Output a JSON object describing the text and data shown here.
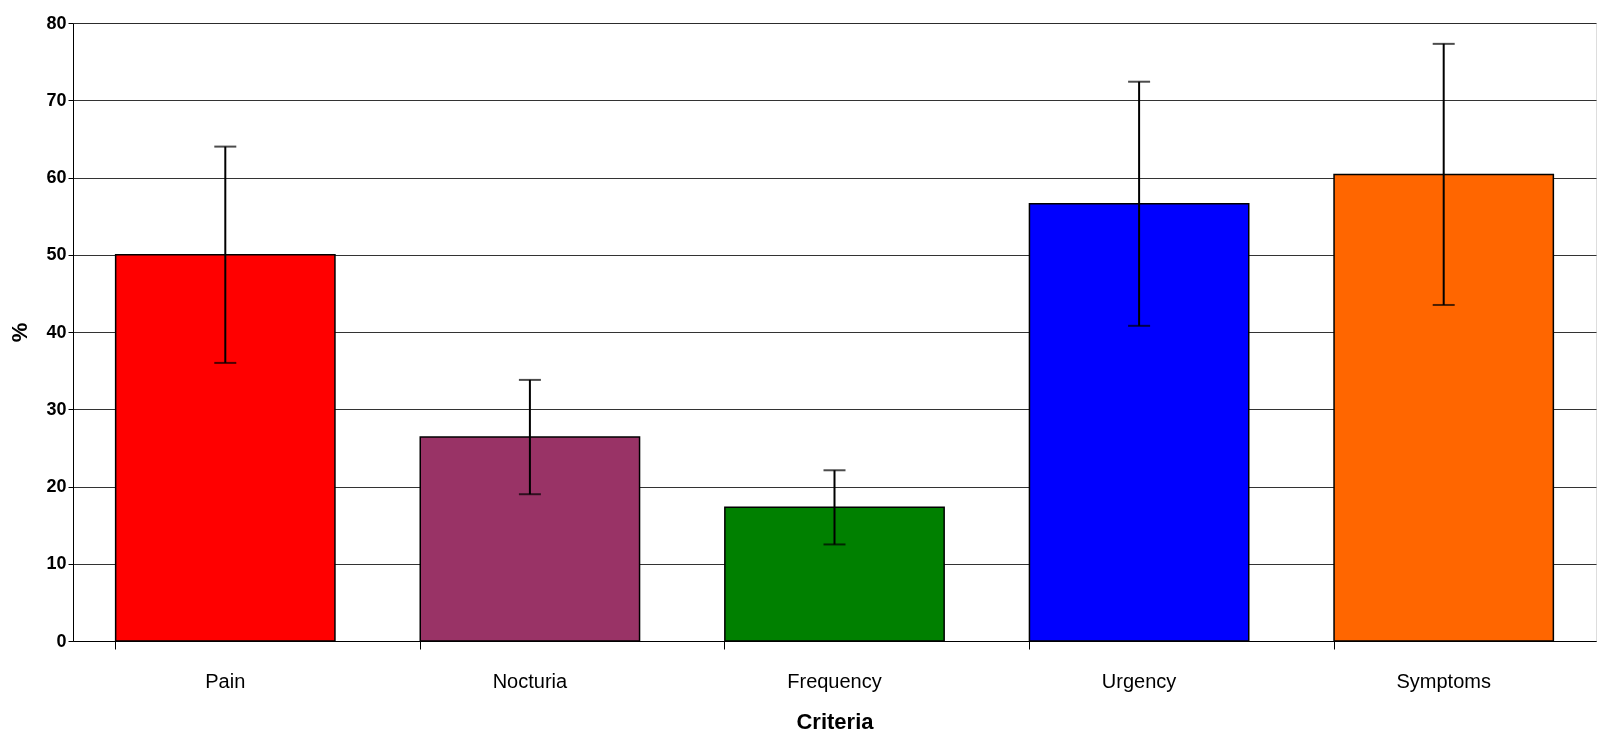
{
  "chart_data": {
    "type": "bar",
    "xlabel": "Criteria",
    "ylabel": "%",
    "categories": [
      "Pain",
      "Nocturia",
      "Frequency",
      "Urgency",
      "Symptoms"
    ],
    "values": [
      50,
      26.4,
      17.3,
      56.6,
      60.4
    ],
    "colors": [
      "#ff0000",
      "#993366",
      "#008000",
      "#0000ff",
      "#ff6600"
    ],
    "errors": [
      14,
      7.4,
      4.8,
      15.8,
      16.9
    ],
    "ylim": [
      0,
      80
    ],
    "yticks": [
      0,
      10,
      20,
      30,
      40,
      50,
      60,
      70,
      80
    ],
    "grid": "y",
    "legend": false
  }
}
